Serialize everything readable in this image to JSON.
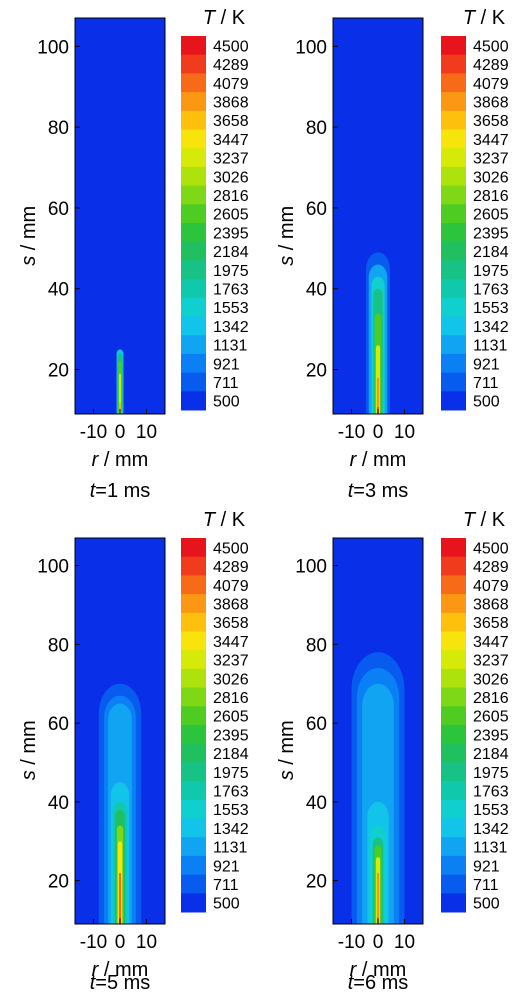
{
  "chart_data": {
    "type": "heatmap",
    "colorbar": {
      "title_var": "T",
      "title_unit": " / K",
      "levels": [
        "4500",
        "4289",
        "4079",
        "3868",
        "3658",
        "3447",
        "3237",
        "3026",
        "2816",
        "2605",
        "2395",
        "2184",
        "1975",
        "1763",
        "1553",
        "1342",
        "1131",
        "921",
        "711",
        "500"
      ],
      "colors": [
        "#e8141b",
        "#f03c1c",
        "#f76a18",
        "#fb9713",
        "#fdc10d",
        "#f6e40a",
        "#d5ea08",
        "#aee20d",
        "#7fd816",
        "#4fcc22",
        "#2bc43c",
        "#20c060",
        "#17c287",
        "#10c8ac",
        "#0fd0cf",
        "#12c4ea",
        "#10a4f2",
        "#0b80f4",
        "#075cef",
        "#0930e8"
      ]
    },
    "panels": [
      {
        "caption_var": "t",
        "caption_value": "=1 ms",
        "xlabel_var": "r",
        "xlabel_unit": " / mm",
        "ylabel_var": "s",
        "ylabel_unit": " / mm",
        "xlim": [
          -17,
          17
        ],
        "ylim": [
          9,
          107
        ],
        "xticks": [
          "-10",
          "0",
          "10"
        ],
        "xtick_values": [
          -10,
          0,
          10
        ],
        "yticks": [
          "20",
          "40",
          "60",
          "80",
          "100"
        ],
        "ytick_values": [
          20,
          40,
          60,
          80,
          100
        ],
        "field": [
          {
            "r": 1.3,
            "s_bottom": 9,
            "s_top": 25,
            "level": 1342
          },
          {
            "r": 1.0,
            "s_bottom": 9,
            "s_top": 24,
            "level": 1975
          },
          {
            "r": 0.6,
            "s_bottom": 9,
            "s_top": 22,
            "level": 2605
          },
          {
            "r": 0.4,
            "s_bottom": 9,
            "s_top": 19,
            "level": 3237
          },
          {
            "r": 0.25,
            "s_bottom": 9,
            "s_top": 12,
            "level": 3868
          },
          {
            "r": 0.15,
            "s_bottom": 9,
            "s_top": 10,
            "level": 4500
          }
        ]
      },
      {
        "caption_var": "t",
        "caption_value": "=3 ms",
        "xlabel_var": "r",
        "xlabel_unit": " / mm",
        "ylabel_var": "s",
        "ylabel_unit": " / mm",
        "xlim": [
          -17,
          17
        ],
        "ylim": [
          9,
          107
        ],
        "xticks": [
          "-10",
          "0",
          "10"
        ],
        "xtick_values": [
          -10,
          0,
          10
        ],
        "yticks": [
          "20",
          "40",
          "60",
          "80",
          "100"
        ],
        "ytick_values": [
          20,
          40,
          60,
          80,
          100
        ],
        "field": [
          {
            "r": 4.5,
            "s_bottom": 9,
            "s_top": 49,
            "level": 711
          },
          {
            "r": 3.5,
            "s_bottom": 9,
            "s_top": 46,
            "level": 1131
          },
          {
            "r": 2.5,
            "s_bottom": 9,
            "s_top": 43,
            "level": 1553
          },
          {
            "r": 1.8,
            "s_bottom": 9,
            "s_top": 40,
            "level": 1975
          },
          {
            "r": 1.2,
            "s_bottom": 9,
            "s_top": 34,
            "level": 2605
          },
          {
            "r": 0.8,
            "s_bottom": 9,
            "s_top": 26,
            "level": 3237
          },
          {
            "r": 0.4,
            "s_bottom": 9,
            "s_top": 18,
            "level": 3868
          },
          {
            "r": 0.2,
            "s_bottom": 9,
            "s_top": 11,
            "level": 4500
          }
        ]
      },
      {
        "caption_var": "t",
        "caption_value": "=5 ms",
        "xlabel_var": "r",
        "xlabel_unit": " / mm",
        "ylabel_var": "s",
        "ylabel_unit": " / mm",
        "xlim": [
          -17,
          17
        ],
        "ylim": [
          9,
          107
        ],
        "xticks": [
          "-10",
          "0",
          "10"
        ],
        "xtick_values": [
          -10,
          0,
          10
        ],
        "yticks": [
          "20",
          "40",
          "60",
          "80",
          "100"
        ],
        "ytick_values": [
          20,
          40,
          60,
          80,
          100
        ],
        "field": [
          {
            "r": 8.0,
            "s_bottom": 9,
            "s_top": 70,
            "level": 711
          },
          {
            "r": 6.0,
            "s_bottom": 9,
            "s_top": 67,
            "level": 921
          },
          {
            "r": 4.5,
            "s_bottom": 9,
            "s_top": 65,
            "level": 1131
          },
          {
            "r": 3.5,
            "s_bottom": 9,
            "s_top": 45,
            "level": 1342
          },
          {
            "r": 2.5,
            "s_bottom": 9,
            "s_top": 40,
            "level": 1763
          },
          {
            "r": 1.8,
            "s_bottom": 9,
            "s_top": 38,
            "level": 2184
          },
          {
            "r": 1.2,
            "s_bottom": 9,
            "s_top": 34,
            "level": 2816
          },
          {
            "r": 0.8,
            "s_bottom": 9,
            "s_top": 30,
            "level": 3447
          },
          {
            "r": 0.4,
            "s_bottom": 9,
            "s_top": 22,
            "level": 4079
          },
          {
            "r": 0.2,
            "s_bottom": 9,
            "s_top": 11,
            "level": 4500
          }
        ]
      },
      {
        "caption_var": "t",
        "caption_value": "=6 ms",
        "xlabel_var": "r",
        "xlabel_unit": " / mm",
        "ylabel_var": "s",
        "ylabel_unit": " / mm",
        "xlim": [
          -17,
          17
        ],
        "ylim": [
          9,
          107
        ],
        "xticks": [
          "-10",
          "0",
          "10"
        ],
        "xtick_values": [
          -10,
          0,
          10
        ],
        "yticks": [
          "20",
          "40",
          "60",
          "80",
          "100"
        ],
        "ytick_values": [
          20,
          40,
          60,
          80,
          100
        ],
        "field": [
          {
            "r": 10.0,
            "s_bottom": 9,
            "s_top": 78,
            "level": 711
          },
          {
            "r": 8.0,
            "s_bottom": 9,
            "s_top": 74,
            "level": 921
          },
          {
            "r": 6.0,
            "s_bottom": 9,
            "s_top": 70,
            "level": 1131
          },
          {
            "r": 4.0,
            "s_bottom": 9,
            "s_top": 40,
            "level": 1342
          },
          {
            "r": 3.0,
            "s_bottom": 9,
            "s_top": 34,
            "level": 1553
          },
          {
            "r": 2.0,
            "s_bottom": 9,
            "s_top": 31,
            "level": 1975
          },
          {
            "r": 1.3,
            "s_bottom": 9,
            "s_top": 29,
            "level": 2605
          },
          {
            "r": 0.8,
            "s_bottom": 9,
            "s_top": 26,
            "level": 3237
          },
          {
            "r": 0.4,
            "s_bottom": 9,
            "s_top": 22,
            "level": 3868
          },
          {
            "r": 0.2,
            "s_bottom": 9,
            "s_top": 11,
            "level": 4500
          }
        ]
      }
    ]
  }
}
